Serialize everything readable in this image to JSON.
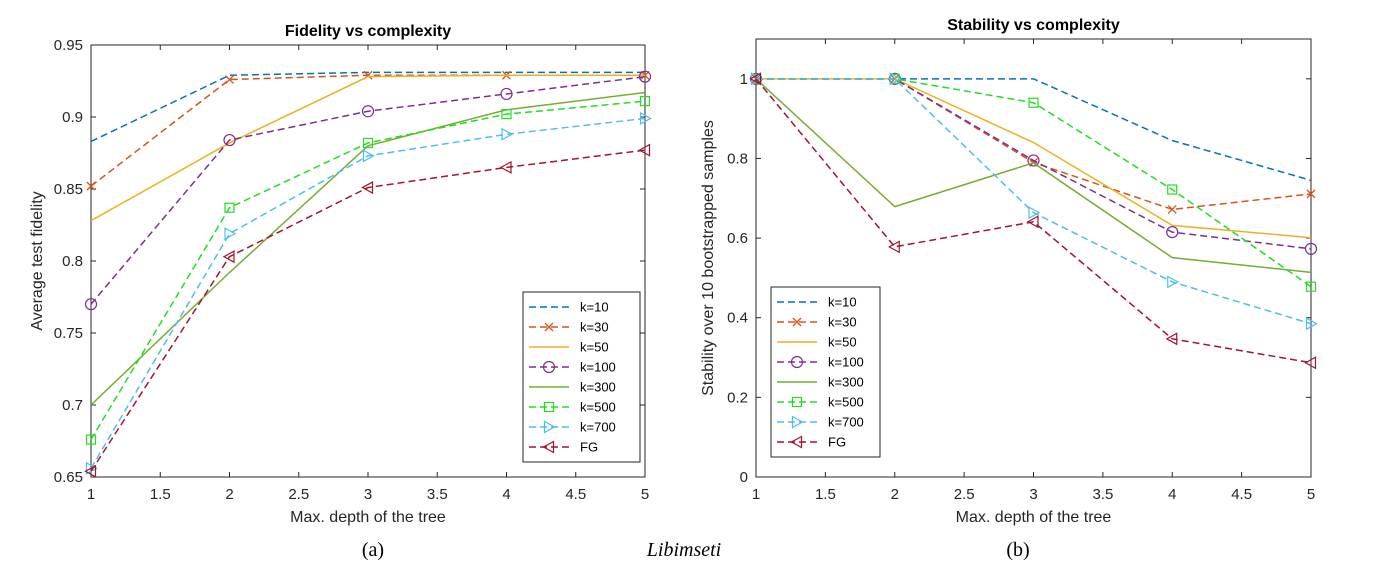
{
  "captions": {
    "left": "(a)",
    "center": "Libimseti",
    "right": "(b)"
  },
  "series_styles": [
    {
      "name": "k=10",
      "color": "#0072BD",
      "dash": "dashed",
      "marker": "none"
    },
    {
      "name": "k=30",
      "color": "#D95319",
      "dash": "dashed",
      "marker": "x"
    },
    {
      "name": "k=50",
      "color": "#EDB120",
      "dash": "solid",
      "marker": "none"
    },
    {
      "name": "k=100",
      "color": "#7E2F8E",
      "dash": "dashed",
      "marker": "circle"
    },
    {
      "name": "k=300",
      "color": "#77AC30",
      "dash": "solid",
      "marker": "none"
    },
    {
      "name": "k=500",
      "color": "#22DD22",
      "dash": "dashed",
      "marker": "square"
    },
    {
      "name": "k=700",
      "color": "#4DBEEE",
      "dash": "dashed",
      "marker": "triangle-right"
    },
    {
      "name": "FG",
      "color": "#A2142F",
      "dash": "dashed",
      "marker": "triangle-left"
    }
  ],
  "chart_data": [
    {
      "type": "line",
      "title": "Fidelity vs complexity",
      "xlabel": "Max. depth of the tree",
      "ylabel": "Average test fidelity",
      "x": [
        1,
        2,
        3,
        4,
        5
      ],
      "xlim": [
        1,
        5
      ],
      "ylim": [
        0.65,
        0.95
      ],
      "xticks": [
        1,
        1.5,
        2,
        2.5,
        3,
        3.5,
        4,
        4.5,
        5
      ],
      "yticks": [
        0.65,
        0.7,
        0.75,
        0.8,
        0.85,
        0.9,
        0.95
      ],
      "xtick_labels": [
        "1",
        "1.5",
        "2",
        "2.5",
        "3",
        "3.5",
        "4",
        "4.5",
        "5"
      ],
      "ytick_labels": [
        "0.65",
        "0.7",
        "0.75",
        "0.8",
        "0.85",
        "0.9",
        "0.95"
      ],
      "grid": false,
      "legend_position": "bottom-right",
      "series": [
        {
          "name": "k=10",
          "values": [
            0.883,
            0.929,
            0.931,
            0.931,
            0.931
          ]
        },
        {
          "name": "k=30",
          "values": [
            0.852,
            0.926,
            0.929,
            0.929,
            0.929
          ]
        },
        {
          "name": "k=50",
          "values": [
            0.828,
            0.882,
            0.928,
            0.929,
            0.929
          ]
        },
        {
          "name": "k=100",
          "values": [
            0.77,
            0.884,
            0.904,
            0.916,
            0.928
          ]
        },
        {
          "name": "k=300",
          "values": [
            0.7,
            0.792,
            0.88,
            0.905,
            0.917
          ]
        },
        {
          "name": "k=500",
          "values": [
            0.676,
            0.837,
            0.882,
            0.902,
            0.911
          ]
        },
        {
          "name": "k=700",
          "values": [
            0.656,
            0.819,
            0.873,
            0.888,
            0.899
          ]
        },
        {
          "name": "FG",
          "values": [
            0.654,
            0.803,
            0.851,
            0.865,
            0.877
          ]
        }
      ]
    },
    {
      "type": "line",
      "title": "Stability vs complexity",
      "xlabel": "Max. depth of the tree",
      "ylabel": "Stability over 10 bootstrapped samples",
      "x": [
        1,
        2,
        3,
        4,
        5
      ],
      "xlim": [
        1,
        5
      ],
      "ylim": [
        0,
        1.1
      ],
      "xticks": [
        1,
        1.5,
        2,
        2.5,
        3,
        3.5,
        4,
        4.5,
        5
      ],
      "yticks": [
        0,
        0.2,
        0.4,
        0.6,
        0.8,
        1
      ],
      "xtick_labels": [
        "1",
        "1.5",
        "2",
        "2.5",
        "3",
        "3.5",
        "4",
        "4.5",
        "5"
      ],
      "ytick_labels": [
        "0",
        "0.2",
        "0.4",
        "0.6",
        "0.8",
        "1"
      ],
      "grid": false,
      "legend_position": "bottom-left",
      "series": [
        {
          "name": "k=10",
          "values": [
            1.0,
            1.0,
            1.0,
            0.845,
            0.745
          ]
        },
        {
          "name": "k=30",
          "values": [
            1.0,
            1.0,
            0.79,
            0.672,
            0.711
          ]
        },
        {
          "name": "k=50",
          "values": [
            1.0,
            1.0,
            0.84,
            0.632,
            0.601
          ]
        },
        {
          "name": "k=100",
          "values": [
            1.0,
            1.0,
            0.795,
            0.615,
            0.573
          ]
        },
        {
          "name": "k=300",
          "values": [
            1.0,
            0.679,
            0.789,
            0.551,
            0.514
          ]
        },
        {
          "name": "k=500",
          "values": [
            1.0,
            1.0,
            0.94,
            0.722,
            0.478
          ]
        },
        {
          "name": "k=700",
          "values": [
            1.0,
            1.0,
            0.664,
            0.49,
            0.385
          ]
        },
        {
          "name": "FG",
          "values": [
            1.0,
            0.578,
            0.641,
            0.347,
            0.287
          ]
        }
      ]
    }
  ]
}
